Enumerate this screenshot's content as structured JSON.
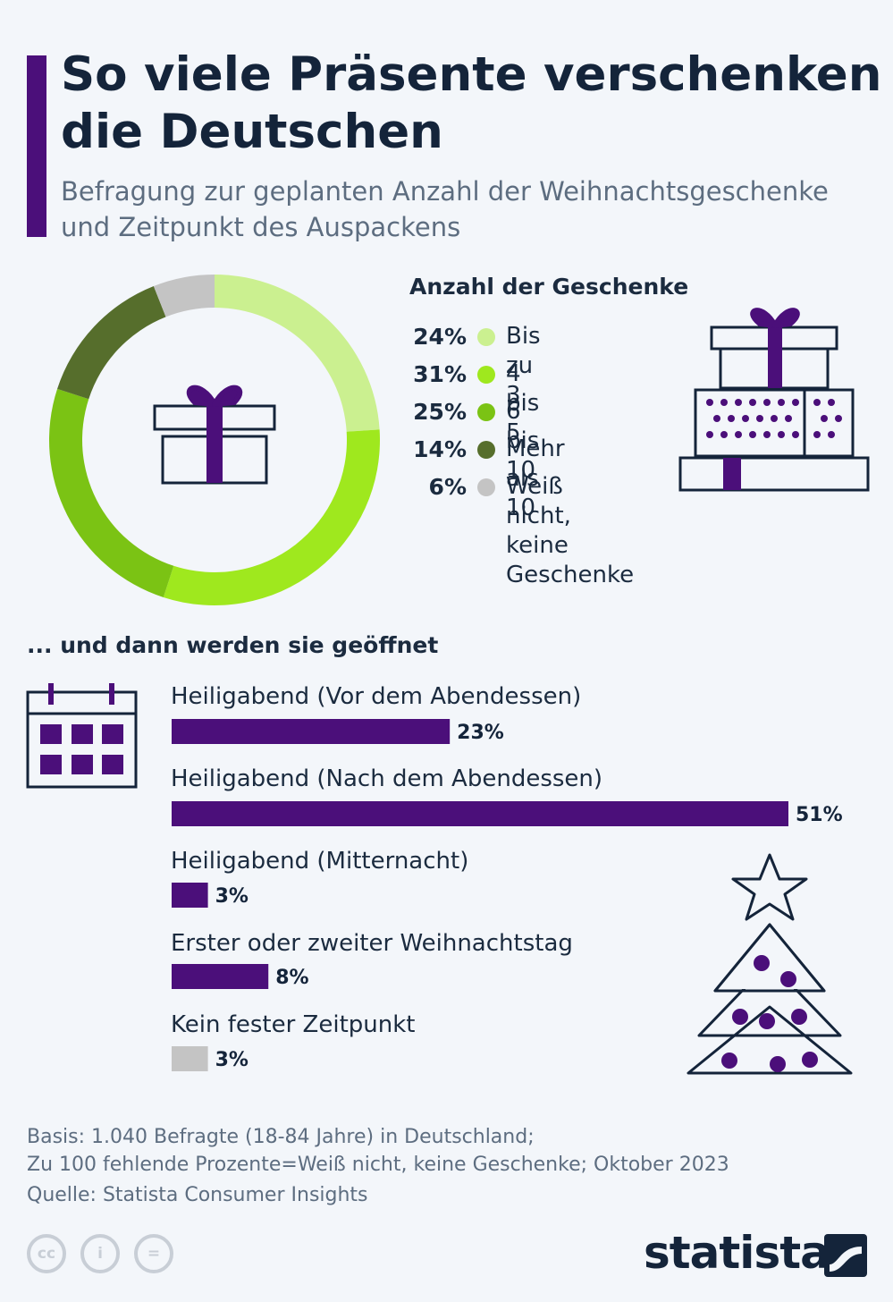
{
  "header": {
    "title": "So viele Präsente verschenken die Deutschen",
    "subtitle": "Befragung zur geplanten Anzahl der Weihnachtsgeschenke und Zeitpunkt des Auspackens"
  },
  "colors": {
    "accent": "#4b0f7a",
    "bis3": "#cbf090",
    "bis5": "#9fe81e",
    "bis10": "#7bc314",
    "mehr10": "#566e2c",
    "weissnicht": "#c4c4c4"
  },
  "chart_data": [
    {
      "type": "pie",
      "title": "Anzahl der Geschenke",
      "labels": [
        "Bis zu 3",
        "4 bis 5",
        "6 bis 10",
        "Mehr als 10",
        "Weiß nicht,\nkeine Geschenke"
      ],
      "pct_labels": [
        "24%",
        "31%",
        "25%",
        "14%",
        "6%"
      ],
      "values": [
        24,
        31,
        25,
        14,
        6
      ],
      "colors": [
        "#cbf090",
        "#9fe81e",
        "#7bc314",
        "#566e2c",
        "#c4c4c4"
      ]
    },
    {
      "type": "bar",
      "title": "... und dann werden sie geöffnet",
      "categories": [
        "Heiligabend (Vor dem Abendessen)",
        "Heiligabend (Nach dem Abendessen)",
        "Heiligabend (Mitternacht)",
        "Erster oder zweiter Weihnachtstag",
        "Kein fester Zeitpunkt"
      ],
      "values": [
        23,
        51,
        3,
        8,
        3
      ],
      "value_labels": [
        "23%",
        "51%",
        "3%",
        "8%",
        "3%"
      ],
      "colors": [
        "#4b0f7a",
        "#4b0f7a",
        "#4b0f7a",
        "#4b0f7a",
        "#c4c4c4"
      ]
    }
  ],
  "icons": {
    "donut_center": "gift-icon",
    "legend_side": "gift-stack-icon",
    "bars_side": "calendar-icon",
    "bars_decoration": "christmas-tree-icon"
  },
  "footer": {
    "notes": [
      "Basis: 1.040 Befragte (18-84 Jahre) in Deutschland;",
      "Zu 100 fehlende Prozente=Weiß nicht, keine Geschenke; Oktober 2023"
    ],
    "source": "Quelle: Statista Consumer Insights",
    "cc_labels": [
      "cc",
      "i",
      "="
    ],
    "brand": "statista"
  }
}
